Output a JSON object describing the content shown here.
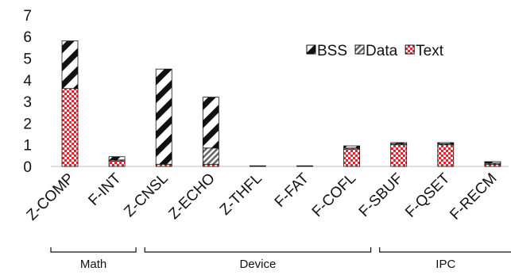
{
  "chart_data": {
    "type": "bar",
    "stacked": true,
    "categories": [
      "Z-COMP",
      "F-INT",
      "Z-CNSL",
      "Z-ECHO",
      "Z-THFL",
      "F-FAT",
      "F-COFL",
      "F-SBUF",
      "F-QSET",
      "F-RECM"
    ],
    "series": [
      {
        "name": "Text",
        "values": [
          3.6,
          0.25,
          0.1,
          0.1,
          0.0,
          0.0,
          0.8,
          1.0,
          1.0,
          0.1
        ],
        "color": "#e8232c",
        "pattern": "dots"
      },
      {
        "name": "Data",
        "values": [
          0.0,
          0.05,
          0.0,
          0.75,
          0.0,
          0.0,
          0.05,
          0.05,
          0.05,
          0.05
        ],
        "color": "#666666",
        "pattern": "gray-stripes"
      },
      {
        "name": "BSS",
        "values": [
          2.2,
          0.15,
          4.4,
          2.35,
          0.03,
          0.03,
          0.1,
          0.05,
          0.05,
          0.07
        ],
        "color": "#111111",
        "pattern": "diagonal"
      }
    ],
    "legend_order": [
      "BSS",
      "Data",
      "Text"
    ],
    "legend_position": "top-right",
    "ylim": [
      0,
      7
    ],
    "yticks": [
      "0",
      "1",
      "2",
      "3",
      "4",
      "5",
      "6",
      "7"
    ],
    "grid": false,
    "groups": [
      {
        "label": "Math",
        "from": 0,
        "to": 1
      },
      {
        "label": "Device",
        "from": 2,
        "to": 6
      },
      {
        "label": "IPC",
        "from": 7,
        "to": 9
      }
    ]
  }
}
